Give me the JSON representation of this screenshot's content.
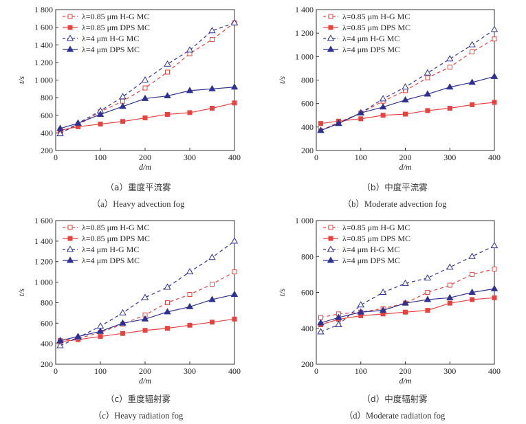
{
  "legend_labels": {
    "hg085": "λ=0.85 μm H-G MC",
    "dps085": "λ=0.85 μm DPS MC",
    "hg4": "λ=4 μm H-G MC",
    "dps4": "λ=4 μm DPS MC"
  },
  "colors": {
    "red": "#e8413e",
    "blue": "#2e3192"
  },
  "chart_data": [
    {
      "type": "line",
      "id": "a",
      "caption_zh": "（a）重度平流雾",
      "caption_en": "（a）Heavy advection fog",
      "xlabel": "d/m",
      "ylabel": "t/s",
      "xlim": [
        0,
        400
      ],
      "ylim": [
        200,
        1800
      ],
      "xticks": [
        0,
        100,
        200,
        300,
        400
      ],
      "yticks": [
        200,
        400,
        600,
        800,
        1000,
        1200,
        1400,
        1600,
        1800
      ],
      "ytick_labels": [
        "200",
        "400",
        "600",
        "800",
        "1 000",
        "1 200",
        "1 400",
        "1 600",
        "1 800"
      ],
      "legend_position": "top-left",
      "x": [
        10,
        50,
        100,
        150,
        200,
        250,
        300,
        350,
        400
      ],
      "series": [
        {
          "key": "hg085",
          "values": [
            400,
            490,
            640,
            760,
            910,
            1090,
            1300,
            1460,
            1650
          ]
        },
        {
          "key": "dps085",
          "values": [
            430,
            470,
            500,
            530,
            570,
            610,
            630,
            680,
            740
          ]
        },
        {
          "key": "hg4",
          "values": [
            390,
            510,
            650,
            810,
            1000,
            1180,
            1340,
            1560,
            1650
          ]
        },
        {
          "key": "dps4",
          "values": [
            450,
            510,
            610,
            700,
            790,
            820,
            880,
            900,
            920
          ]
        }
      ]
    },
    {
      "type": "line",
      "id": "b",
      "caption_zh": "（b）中度平流雾",
      "caption_en": "（b）Moderate advection fog",
      "xlabel": "d/m",
      "ylabel": "t/s",
      "xlim": [
        0,
        400
      ],
      "ylim": [
        200,
        1400
      ],
      "xticks": [
        0,
        100,
        200,
        300,
        400
      ],
      "yticks": [
        200,
        400,
        600,
        800,
        1000,
        1200,
        1400
      ],
      "ytick_labels": [
        "200",
        "400",
        "600",
        "800",
        "1 000",
        "1 200",
        "1 400"
      ],
      "legend_position": "top-left",
      "x": [
        10,
        50,
        100,
        150,
        200,
        250,
        300,
        350,
        400
      ],
      "series": [
        {
          "key": "hg085",
          "values": [
            370,
            440,
            520,
            620,
            710,
            820,
            910,
            1040,
            1150
          ]
        },
        {
          "key": "dps085",
          "values": [
            430,
            450,
            470,
            500,
            510,
            540,
            560,
            590,
            610
          ]
        },
        {
          "key": "hg4",
          "values": [
            370,
            430,
            520,
            640,
            740,
            860,
            980,
            1100,
            1230
          ]
        },
        {
          "key": "dps4",
          "values": [
            370,
            430,
            520,
            570,
            630,
            680,
            740,
            780,
            830
          ]
        }
      ]
    },
    {
      "type": "line",
      "id": "c",
      "caption_zh": "（c）重度辐射雾",
      "caption_en": "（c）Heavy radiation fog",
      "xlabel": "d/m",
      "ylabel": "t/s",
      "xlim": [
        0,
        400
      ],
      "ylim": [
        200,
        1600
      ],
      "xticks": [
        0,
        100,
        200,
        300,
        400
      ],
      "yticks": [
        200,
        400,
        600,
        800,
        1000,
        1200,
        1400,
        1600
      ],
      "ytick_labels": [
        "200",
        "400",
        "600",
        "800",
        "1 000",
        "1 200",
        "1 400",
        "1 600"
      ],
      "legend_position": "top-left",
      "x": [
        10,
        50,
        100,
        150,
        200,
        250,
        300,
        350,
        400
      ],
      "series": [
        {
          "key": "hg085",
          "values": [
            430,
            450,
            510,
            590,
            680,
            800,
            880,
            980,
            1100
          ]
        },
        {
          "key": "dps085",
          "values": [
            420,
            440,
            470,
            500,
            530,
            550,
            580,
            610,
            640
          ]
        },
        {
          "key": "hg4",
          "values": [
            380,
            460,
            570,
            700,
            850,
            950,
            1100,
            1240,
            1400
          ]
        },
        {
          "key": "dps4",
          "values": [
            430,
            470,
            520,
            600,
            640,
            710,
            760,
            830,
            880
          ]
        }
      ]
    },
    {
      "type": "line",
      "id": "d",
      "caption_zh": "（d）中度辐射雾",
      "caption_en": "（d）Moderate radiation fog",
      "xlabel": "d/m",
      "ylabel": "t/s",
      "xlim": [
        0,
        400
      ],
      "ylim": [
        200,
        1000
      ],
      "xticks": [
        0,
        100,
        200,
        300,
        400
      ],
      "yticks": [
        200,
        400,
        600,
        800,
        1000
      ],
      "ytick_labels": [
        "200",
        "400",
        "600",
        "800",
        "1 000"
      ],
      "legend_position": "top-left",
      "x": [
        10,
        50,
        100,
        150,
        200,
        250,
        300,
        350,
        400
      ],
      "series": [
        {
          "key": "hg085",
          "values": [
            460,
            480,
            490,
            510,
            540,
            600,
            640,
            700,
            730
          ]
        },
        {
          "key": "dps085",
          "values": [
            420,
            450,
            470,
            480,
            490,
            500,
            540,
            560,
            570
          ]
        },
        {
          "key": "hg4",
          "values": [
            380,
            420,
            530,
            600,
            650,
            680,
            740,
            800,
            860
          ]
        },
        {
          "key": "dps4",
          "values": [
            430,
            460,
            490,
            500,
            540,
            560,
            570,
            600,
            620
          ]
        }
      ]
    }
  ]
}
